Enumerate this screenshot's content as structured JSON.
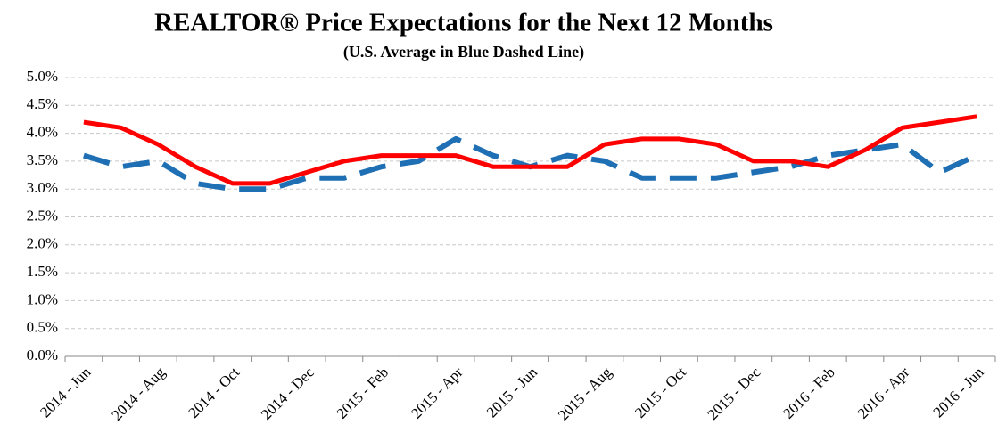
{
  "chart_data": {
    "type": "line",
    "title": "REALTOR® Price Expectations for the Next 12 Months",
    "subtitle": "(U.S. Average in Blue Dashed Line)",
    "categories": [
      "2014 - Jun",
      null,
      "2014 - Aug",
      null,
      "2014 - Oct",
      null,
      "2014 - Dec",
      null,
      "2015 - Feb",
      null,
      "2015 - Apr",
      null,
      "2015 - Jun",
      null,
      "2015 - Aug",
      null,
      "2015 - Oct",
      null,
      "2015 - Dec",
      null,
      "2016 - Feb",
      null,
      "2016 - Apr",
      null,
      "2016 - Jun"
    ],
    "series": [
      {
        "color": "#1f6fb4",
        "dashed": true,
        "values": [
          3.6,
          3.4,
          3.5,
          3.1,
          3.0,
          3.0,
          3.2,
          3.2,
          3.4,
          3.5,
          3.9,
          3.6,
          3.4,
          3.6,
          3.5,
          3.2,
          3.2,
          3.2,
          3.3,
          3.4,
          3.6,
          3.7,
          3.8,
          3.3,
          3.6
        ]
      },
      {
        "color": "#ff0000",
        "dashed": false,
        "values": [
          4.2,
          4.1,
          3.8,
          3.4,
          3.1,
          3.1,
          3.3,
          3.5,
          3.6,
          3.6,
          3.6,
          3.4,
          3.4,
          3.4,
          3.8,
          3.9,
          3.9,
          3.8,
          3.5,
          3.5,
          3.4,
          3.7,
          4.1,
          4.2,
          4.3
        ]
      }
    ],
    "ylim": [
      0,
      5
    ],
    "yticks": [
      {
        "value": 0,
        "label": "0.0%"
      },
      {
        "value": 0.5,
        "label": "0.5%"
      },
      {
        "value": 1,
        "label": "1.0%"
      },
      {
        "value": 1.5,
        "label": "1.5%"
      },
      {
        "value": 2,
        "label": "2.0%"
      },
      {
        "value": 2.5,
        "label": "2.5%"
      },
      {
        "value": 3,
        "label": "3.0%"
      },
      {
        "value": 3.5,
        "label": "3.5%"
      },
      {
        "value": 4,
        "label": "4.0%"
      },
      {
        "value": 4.5,
        "label": "4.5%"
      },
      {
        "value": 5,
        "label": "5.0%"
      }
    ],
    "grid": true
  }
}
